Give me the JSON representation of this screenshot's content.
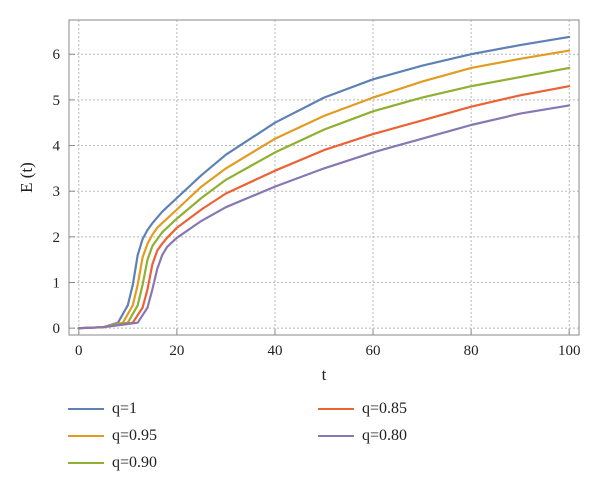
{
  "chart_data": {
    "type": "line",
    "title": "",
    "xlabel": "t",
    "ylabel": "E (t)",
    "xlim": [
      -2,
      102
    ],
    "ylim": [
      -0.15,
      6.75
    ],
    "xticks": [
      0,
      20,
      40,
      60,
      80,
      100
    ],
    "yticks": [
      0,
      1,
      2,
      3,
      4,
      5,
      6
    ],
    "grid": true,
    "legend_position": "bottom",
    "series": [
      {
        "name": "q=1",
        "color": "#5e81b5",
        "x": [
          0,
          5,
          8,
          10,
          11,
          12,
          13,
          14,
          15,
          17,
          20,
          25,
          30,
          40,
          50,
          60,
          70,
          80,
          90,
          100
        ],
        "y": [
          0,
          0.02,
          0.12,
          0.5,
          0.95,
          1.6,
          1.95,
          2.15,
          2.3,
          2.55,
          2.85,
          3.35,
          3.8,
          4.5,
          5.05,
          5.45,
          5.75,
          6.0,
          6.2,
          6.38
        ]
      },
      {
        "name": "q=0.95",
        "color": "#e19c24",
        "x": [
          0,
          5,
          9,
          11,
          12,
          13,
          14,
          15,
          16,
          18,
          20,
          25,
          30,
          40,
          50,
          60,
          70,
          80,
          90,
          100
        ],
        "y": [
          0,
          0.02,
          0.12,
          0.5,
          0.95,
          1.55,
          1.85,
          2.05,
          2.2,
          2.4,
          2.6,
          3.1,
          3.5,
          4.15,
          4.65,
          5.05,
          5.4,
          5.7,
          5.9,
          6.08
        ]
      },
      {
        "name": "q=0.90",
        "color": "#8fb032",
        "x": [
          0,
          5,
          10,
          12,
          13,
          14,
          15,
          16,
          17,
          20,
          25,
          30,
          40,
          50,
          60,
          70,
          80,
          90,
          100
        ],
        "y": [
          0,
          0.02,
          0.12,
          0.5,
          0.95,
          1.5,
          1.8,
          1.95,
          2.1,
          2.4,
          2.85,
          3.25,
          3.85,
          4.35,
          4.75,
          5.05,
          5.3,
          5.5,
          5.7
        ]
      },
      {
        "name": "q=0.85",
        "color": "#eb6235",
        "x": [
          0,
          5,
          11,
          13,
          14,
          15,
          16,
          17,
          18,
          20,
          25,
          30,
          40,
          50,
          60,
          70,
          80,
          90,
          100
        ],
        "y": [
          0,
          0.02,
          0.12,
          0.45,
          0.85,
          1.4,
          1.7,
          1.85,
          1.98,
          2.2,
          2.6,
          2.95,
          3.45,
          3.9,
          4.25,
          4.55,
          4.85,
          5.1,
          5.3
        ]
      },
      {
        "name": "q=0.80",
        "color": "#8778b3",
        "x": [
          0,
          5,
          12,
          14,
          15,
          16,
          17,
          18,
          19,
          20,
          25,
          30,
          40,
          50,
          60,
          70,
          80,
          90,
          100
        ],
        "y": [
          0,
          0.02,
          0.12,
          0.45,
          0.85,
          1.3,
          1.6,
          1.78,
          1.88,
          1.98,
          2.35,
          2.65,
          3.1,
          3.5,
          3.85,
          4.15,
          4.45,
          4.7,
          4.88
        ]
      }
    ]
  }
}
